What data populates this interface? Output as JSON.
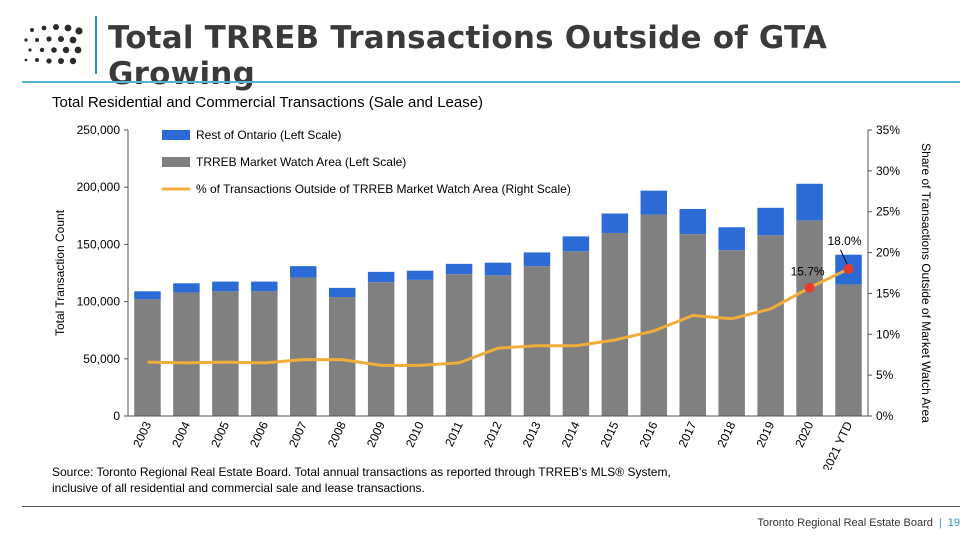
{
  "header": {
    "title": "Total TRREB Transactions Outside of GTA Growing"
  },
  "chart_data": {
    "type": "bar",
    "title": "Total Residential and Commercial Transactions (Sale and Lease)",
    "ylabel": "Total Transaction Count",
    "y2label": "Share of Transactions Outside of Market Watch Area",
    "ylim": [
      0,
      250000
    ],
    "y2lim": [
      0,
      0.35
    ],
    "y_ticks": [
      "0",
      "50,000",
      "100,000",
      "150,000",
      "200,000",
      "250,000"
    ],
    "y2_ticks": [
      "0%",
      "5%",
      "10%",
      "15%",
      "20%",
      "25%",
      "30%",
      "35%"
    ],
    "stacked": true,
    "categories": [
      "2003",
      "2004",
      "2005",
      "2006",
      "2007",
      "2008",
      "2009",
      "2010",
      "2011",
      "2012",
      "2013",
      "2014",
      "2015",
      "2016",
      "2017",
      "2018",
      "2019",
      "2020",
      "2021 YTD"
    ],
    "series": [
      {
        "name": "TRREB Market Watch Area (Left Scale)",
        "color": "#808080",
        "axis": "left",
        "values": [
          102000,
          108000,
          109000,
          109000,
          121000,
          104000,
          117000,
          119000,
          124000,
          123000,
          131000,
          144000,
          160000,
          176000,
          159000,
          145000,
          158000,
          171000,
          115000
        ]
      },
      {
        "name": "Rest of Ontario (Left Scale)",
        "color": "#2c6bd6",
        "axis": "left",
        "values": [
          7000,
          8000,
          8500,
          8500,
          10000,
          8000,
          9000,
          8000,
          9000,
          11000,
          12000,
          13000,
          17000,
          21000,
          22000,
          20000,
          24000,
          32000,
          26000
        ]
      },
      {
        "name": "% of Transactions Outside of TRREB Market Watch Area (Right Scale)",
        "color": "#f0ad3a",
        "axis": "right",
        "type": "line",
        "values": [
          0.066,
          0.065,
          0.066,
          0.065,
          0.069,
          0.069,
          0.062,
          0.062,
          0.065,
          0.083,
          0.086,
          0.086,
          0.093,
          0.104,
          0.123,
          0.119,
          0.131,
          0.157,
          0.18
        ]
      }
    ],
    "annotations": [
      {
        "category": "2020",
        "label": "15.7%",
        "value": 0.157
      },
      {
        "category": "2021 YTD",
        "label": "18.0%",
        "value": 0.18
      }
    ],
    "legend": "top-left",
    "grid": false
  },
  "source_note": {
    "line1": "Source: Toronto Regional Real Estate Board.  Total annual transactions as reported through TRREB's MLS® System,",
    "line2": "inclusive of all residential and commercial sale and lease transactions."
  },
  "footer": {
    "org": "Toronto Regional Real Estate Board",
    "separator": "|",
    "page": "19"
  }
}
